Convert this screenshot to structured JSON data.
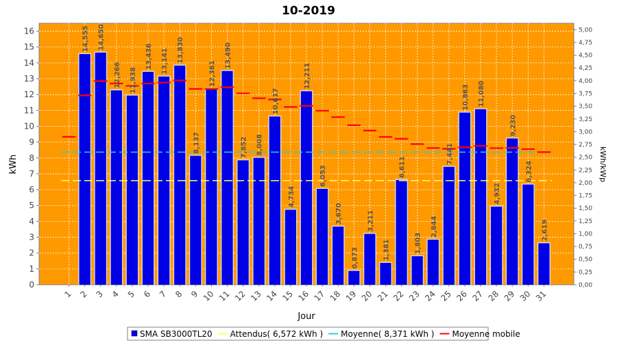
{
  "chart_data": {
    "type": "bar",
    "title": "10-2019",
    "xlabel": "Jour",
    "ylabel": "kWh",
    "ylabel_right": "kWh/kWp",
    "ylim": [
      0,
      16.5
    ],
    "ylim_right": [
      0,
      5.125
    ],
    "yticks": [
      "0",
      "1",
      "2",
      "3",
      "4",
      "5",
      "6",
      "7",
      "8",
      "9",
      "10",
      "11",
      "12",
      "13",
      "14",
      "15",
      "16"
    ],
    "yticks_right": [
      "0,00",
      "0,25",
      "0,50",
      "0,75",
      "1,00",
      "1,25",
      "1,50",
      "1,75",
      "2,00",
      "2,25",
      "2,50",
      "2,75",
      "3,00",
      "3,25",
      "3,50",
      "3,75",
      "4,00",
      "4,25",
      "4,50",
      "4,75",
      "5,00"
    ],
    "categories": [
      "1",
      "2",
      "3",
      "4",
      "5",
      "6",
      "7",
      "8",
      "9",
      "10",
      "11",
      "12",
      "13",
      "14",
      "15",
      "16",
      "17",
      "18",
      "19",
      "20",
      "21",
      "22",
      "23",
      "24",
      "25",
      "26",
      "27",
      "28",
      "29",
      "30",
      "31"
    ],
    "grid": true,
    "legend_position": "bottom",
    "colors": {
      "background": "#FF9900",
      "bar": "#0000E6",
      "expected": "#FFFF66",
      "average": "#33CCCC",
      "moving_average": "#FF0000"
    },
    "series": [
      {
        "name": "SMA SB3000TL20",
        "kind": "bar",
        "color": "#0000E6",
        "values": [
          null,
          14.555,
          14.65,
          12.266,
          11.938,
          13.436,
          13.141,
          13.83,
          8.137,
          12.361,
          13.49,
          7.852,
          8.008,
          10.617,
          4.734,
          12.211,
          6.053,
          3.67,
          0.873,
          3.211,
          1.381,
          6.611,
          1.803,
          2.844,
          7.441,
          10.863,
          11.08,
          4.932,
          9.23,
          6.324,
          2.619
        ],
        "labels": [
          "",
          "14,555",
          "14,650",
          "12,266",
          "11,938",
          "13,436",
          "13,141",
          "13,830",
          "8,137",
          "12,361",
          "13,490",
          "7,852",
          "8,008",
          "10,617",
          "4,734",
          "12,211",
          "6,053",
          "3,670",
          "0,873",
          "3,211",
          "1,381",
          "6,611",
          "1,803",
          "2,844",
          "7,441",
          "10,863",
          "11,080",
          "4,932",
          "9,230",
          "6,324",
          "2,619"
        ]
      },
      {
        "name": "Attendus( 6,572 kWh )",
        "kind": "hline",
        "color": "#FFFF66",
        "value": 6.572
      },
      {
        "name": "Moyenne( 8,371 kWh )",
        "kind": "hline",
        "color": "#33CCCC",
        "value": 8.371
      },
      {
        "name": "Moyenne mobile",
        "kind": "steps",
        "color": "#FF0000",
        "values": [
          9.336,
          11.95,
          12.85,
          12.7,
          12.55,
          12.7,
          12.76,
          12.89,
          12.36,
          12.36,
          12.46,
          12.08,
          11.77,
          11.69,
          11.22,
          11.29,
          10.98,
          10.58,
          10.07,
          9.73,
          9.33,
          9.21,
          8.88,
          8.63,
          8.58,
          8.67,
          8.76,
          8.62,
          8.64,
          8.56,
          8.37
        ]
      }
    ]
  }
}
